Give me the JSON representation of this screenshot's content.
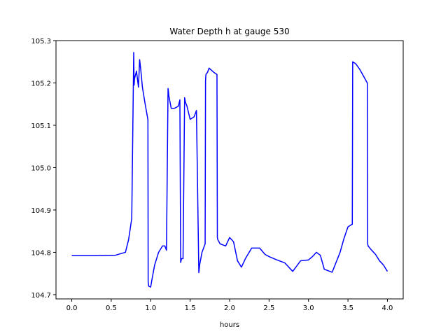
{
  "chart_data": {
    "type": "line",
    "title": "Water Depth h at gauge 530",
    "xlabel": "hours",
    "ylabel": "",
    "xlim": [
      -0.2,
      4.2
    ],
    "ylim": [
      104.69,
      105.3
    ],
    "x_ticks": [
      0.0,
      0.5,
      1.0,
      1.5,
      2.0,
      2.5,
      3.0,
      3.5,
      4.0
    ],
    "x_tick_labels": [
      "0.0",
      "0.5",
      "1.0",
      "1.5",
      "2.0",
      "2.5",
      "3.0",
      "3.5",
      "4.0"
    ],
    "y_ticks": [
      104.7,
      104.8,
      104.9,
      105.0,
      105.1,
      105.2,
      105.3
    ],
    "y_tick_labels": [
      "104.7",
      "104.8",
      "104.9",
      "105.0",
      "105.1",
      "105.2",
      "105.3"
    ],
    "grid": false,
    "series": [
      {
        "color": "#0000ff",
        "x": [
          0.0,
          0.3,
          0.55,
          0.68,
          0.72,
          0.76,
          0.785,
          0.79,
          0.795,
          0.82,
          0.845,
          0.86,
          0.875,
          0.885,
          0.895,
          0.93,
          0.965,
          0.968,
          0.975,
          1.0,
          1.02,
          1.05,
          1.1,
          1.15,
          1.18,
          1.2,
          1.22,
          1.225,
          1.23,
          1.26,
          1.3,
          1.35,
          1.37,
          1.38,
          1.385,
          1.39,
          1.4,
          1.41,
          1.43,
          1.435,
          1.44,
          1.46,
          1.5,
          1.55,
          1.58,
          1.61,
          1.615,
          1.62,
          1.65,
          1.69,
          1.695,
          1.7,
          1.72,
          1.74,
          1.77,
          1.8,
          1.84,
          1.845,
          1.85,
          1.88,
          1.95,
          2.0,
          2.05,
          2.1,
          2.15,
          2.2,
          2.28,
          2.38,
          2.45,
          2.5,
          2.6,
          2.7,
          2.8,
          2.9,
          3.0,
          3.05,
          3.1,
          3.15,
          3.2,
          3.3,
          3.4,
          3.45,
          3.5,
          3.55,
          3.555,
          3.56,
          3.6,
          3.65,
          3.7,
          3.745,
          3.75,
          3.755,
          3.8,
          3.85,
          3.9,
          3.95,
          4.0
        ],
        "y": [
          104.792,
          104.792,
          104.793,
          104.8,
          104.83,
          104.88,
          105.272,
          105.195,
          105.21,
          105.228,
          105.19,
          105.255,
          105.23,
          105.21,
          105.19,
          105.15,
          105.113,
          104.73,
          104.72,
          104.718,
          104.74,
          104.77,
          104.8,
          104.815,
          104.815,
          104.805,
          105.187,
          105.18,
          105.17,
          105.14,
          105.14,
          105.145,
          105.16,
          104.776,
          104.78,
          104.785,
          104.785,
          104.785,
          105.165,
          105.16,
          105.155,
          105.145,
          105.114,
          105.12,
          105.135,
          104.752,
          104.76,
          104.77,
          104.8,
          104.82,
          105.205,
          105.22,
          105.225,
          105.235,
          105.23,
          105.225,
          105.22,
          104.835,
          104.83,
          104.82,
          104.815,
          104.835,
          104.825,
          104.78,
          104.765,
          104.785,
          104.81,
          104.81,
          104.795,
          104.79,
          104.782,
          104.775,
          104.755,
          104.78,
          104.782,
          104.79,
          104.8,
          104.793,
          104.76,
          104.753,
          104.8,
          104.833,
          104.86,
          104.866,
          104.866,
          105.25,
          105.245,
          105.232,
          105.215,
          105.2,
          104.82,
          104.815,
          104.805,
          104.795,
          104.78,
          104.77,
          104.755
        ]
      }
    ]
  }
}
